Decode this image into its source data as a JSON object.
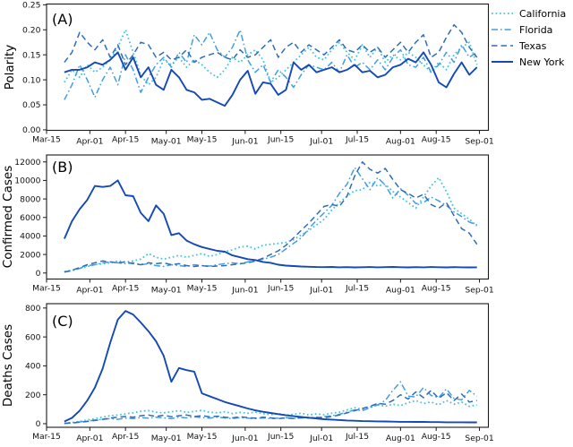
{
  "figure": {
    "background": "#ffffff"
  },
  "legend": {
    "position": "top-right-outside",
    "frame": "none"
  },
  "chart_data": {
    "type": "line",
    "title": "",
    "grid": false,
    "x_axis": {
      "unit": "date",
      "domain_days": [
        -7,
        166.5
      ],
      "sample_start_day": 0,
      "sample_step_days": 3,
      "sample_start_date": "Mar-22",
      "ticks": [
        {
          "label": "Mar-15",
          "day": -7
        },
        {
          "label": "Apr-01",
          "day": 10
        },
        {
          "label": "Apr-15",
          "day": 24
        },
        {
          "label": "May-01",
          "day": 40
        },
        {
          "label": "May-15",
          "day": 54
        },
        {
          "label": "Jun-01",
          "day": 71
        },
        {
          "label": "Jun-15",
          "day": 85
        },
        {
          "label": "Jul-01",
          "day": 101
        },
        {
          "label": "Jul-15",
          "day": 115
        },
        {
          "label": "Aug-01",
          "day": 132
        },
        {
          "label": "Aug-15",
          "day": 146
        },
        {
          "label": "Sep-01",
          "day": 163
        }
      ]
    },
    "panels": [
      {
        "id": "A",
        "panel_label": "(A)",
        "ylabel": "Polarity",
        "ylim": [
          -0.001,
          0.2515
        ],
        "series_key": "polarity",
        "yticks": [
          {
            "v": 0.0,
            "label": "0.00"
          },
          {
            "v": 0.05,
            "label": "0.05"
          },
          {
            "v": 0.1,
            "label": "0.10"
          },
          {
            "v": 0.15,
            "label": "0.15"
          },
          {
            "v": 0.2,
            "label": "0.20"
          },
          {
            "v": 0.25,
            "label": "0.25"
          }
        ]
      },
      {
        "id": "B",
        "panel_label": "(B)",
        "ylabel": "Confirmed Cases",
        "ylim": [
          -650,
          12750
        ],
        "series_key": "confirmed",
        "yticks": [
          {
            "v": 0,
            "label": "0"
          },
          {
            "v": 2000,
            "label": "2000"
          },
          {
            "v": 4000,
            "label": "4000"
          },
          {
            "v": 6000,
            "label": "6000"
          },
          {
            "v": 8000,
            "label": "8000"
          },
          {
            "v": 10000,
            "label": "10000"
          },
          {
            "v": 12000,
            "label": "12000"
          }
        ]
      },
      {
        "id": "C",
        "panel_label": "(C)",
        "ylabel": "Deaths Cases",
        "ylim": [
          -25,
          830
        ],
        "series_key": "deaths",
        "yticks": [
          {
            "v": 0,
            "label": "0"
          },
          {
            "v": 200,
            "label": "200"
          },
          {
            "v": 400,
            "label": "400"
          },
          {
            "v": 600,
            "label": "600"
          },
          {
            "v": 800,
            "label": "800"
          }
        ]
      }
    ],
    "series": [
      {
        "name": "California",
        "color": "#41c4e3",
        "dash": "dotted",
        "polarity": [
          0.095,
          0.12,
          0.105,
          0.13,
          0.115,
          0.125,
          0.14,
          0.165,
          0.2,
          0.155,
          0.11,
          0.09,
          0.105,
          0.14,
          0.13,
          0.145,
          0.125,
          0.14,
          0.13,
          0.115,
          0.105,
          0.12,
          0.145,
          0.135,
          0.15,
          0.16,
          0.14,
          0.095,
          0.105,
          0.12,
          0.135,
          0.15,
          0.165,
          0.145,
          0.14,
          0.16,
          0.175,
          0.155,
          0.14,
          0.17,
          0.145,
          0.165,
          0.135,
          0.15,
          0.14,
          0.155,
          0.145,
          0.13,
          0.115,
          0.135,
          0.12,
          0.15,
          0.165,
          0.175,
          0.13
        ],
        "confirmed": [
          150,
          300,
          500,
          700,
          900,
          1000,
          1100,
          1300,
          1200,
          1300,
          1500,
          2100,
          1700,
          1500,
          1700,
          1900,
          1700,
          1900,
          2100,
          1800,
          2000,
          2300,
          2500,
          2800,
          2900,
          2600,
          3000,
          3100,
          3200,
          3300,
          3600,
          4100,
          4600,
          5200,
          5800,
          6800,
          7600,
          8300,
          8900,
          9000,
          9800,
          9400,
          9600,
          8800,
          8200,
          7600,
          7000,
          8200,
          9400,
          10300,
          8800,
          7000,
          6400,
          5800,
          5100
        ],
        "deaths": [
          3,
          8,
          15,
          25,
          35,
          45,
          55,
          60,
          68,
          75,
          85,
          90,
          80,
          75,
          82,
          90,
          78,
          85,
          92,
          80,
          75,
          82,
          70,
          78,
          72,
          80,
          70,
          62,
          70,
          60,
          65,
          72,
          60,
          68,
          62,
          72,
          80,
          95,
          110,
          100,
          115,
          130,
          120,
          135,
          125,
          145,
          160,
          140,
          150,
          130,
          160,
          135,
          150,
          120,
          130
        ]
      },
      {
        "name": "Florida",
        "color": "#449de2",
        "dash": "dashdot",
        "polarity": [
          0.06,
          0.09,
          0.13,
          0.1,
          0.065,
          0.1,
          0.125,
          0.09,
          0.15,
          0.12,
          0.075,
          0.105,
          0.13,
          0.145,
          0.125,
          0.155,
          0.135,
          0.19,
          0.17,
          0.195,
          0.16,
          0.145,
          0.165,
          0.2,
          0.14,
          0.115,
          0.13,
          0.095,
          0.12,
          0.105,
          0.085,
          0.11,
          0.13,
          0.125,
          0.12,
          0.135,
          0.115,
          0.15,
          0.125,
          0.135,
          0.12,
          0.14,
          0.12,
          0.145,
          0.16,
          0.13,
          0.125,
          0.145,
          0.115,
          0.13,
          0.155,
          0.135,
          0.17,
          0.145,
          0.155
        ],
        "confirmed": [
          100,
          250,
          500,
          800,
          900,
          1100,
          1200,
          1100,
          1000,
          1100,
          900,
          1000,
          800,
          700,
          900,
          800,
          700,
          900,
          800,
          750,
          900,
          1000,
          1100,
          1000,
          1200,
          1300,
          1500,
          1700,
          2000,
          2600,
          3200,
          3800,
          4800,
          5700,
          6500,
          7300,
          8600,
          9600,
          11400,
          10200,
          9000,
          10300,
          9500,
          8100,
          9100,
          8400,
          7500,
          7600,
          8200,
          7800,
          7300,
          6600,
          6100,
          5500,
          5200
        ],
        "deaths": [
          2,
          6,
          12,
          18,
          25,
          30,
          35,
          30,
          38,
          35,
          42,
          38,
          45,
          40,
          35,
          45,
          40,
          48,
          42,
          38,
          45,
          40,
          35,
          42,
          38,
          35,
          40,
          35,
          38,
          42,
          36,
          40,
          45,
          40,
          48,
          55,
          65,
          80,
          95,
          90,
          110,
          130,
          160,
          230,
          290,
          190,
          185,
          250,
          195,
          180,
          240,
          175,
          165,
          230,
          190
        ]
      },
      {
        "name": "Texas",
        "color": "#2f6db8",
        "dash": "dashed",
        "polarity": [
          0.135,
          0.155,
          0.195,
          0.175,
          0.16,
          0.18,
          0.145,
          0.17,
          0.13,
          0.15,
          0.175,
          0.17,
          0.145,
          0.155,
          0.14,
          0.145,
          0.16,
          0.135,
          0.145,
          0.15,
          0.155,
          0.145,
          0.14,
          0.16,
          0.145,
          0.15,
          0.165,
          0.18,
          0.145,
          0.165,
          0.175,
          0.155,
          0.17,
          0.16,
          0.15,
          0.165,
          0.18,
          0.16,
          0.155,
          0.17,
          0.155,
          0.165,
          0.145,
          0.16,
          0.175,
          0.155,
          0.175,
          0.19,
          0.145,
          0.155,
          0.185,
          0.21,
          0.195,
          0.165,
          0.145
        ],
        "confirmed": [
          100,
          300,
          600,
          900,
          1100,
          1300,
          1200,
          1100,
          1200,
          1000,
          900,
          1100,
          1000,
          1100,
          900,
          1000,
          800,
          700,
          800,
          700,
          750,
          800,
          900,
          1000,
          1100,
          1300,
          1600,
          2000,
          2400,
          3000,
          3800,
          4600,
          5400,
          6300,
          7200,
          7400,
          7200,
          8300,
          10500,
          12000,
          11200,
          10800,
          11300,
          10100,
          9000,
          8600,
          8100,
          8500,
          7400,
          7000,
          7600,
          6200,
          4800,
          4300,
          3100
        ],
        "deaths": [
          2,
          5,
          10,
          15,
          22,
          30,
          38,
          45,
          50,
          45,
          55,
          60,
          50,
          58,
          48,
          55,
          60,
          50,
          55,
          48,
          52,
          45,
          40,
          48,
          42,
          38,
          45,
          40,
          35,
          40,
          36,
          42,
          38,
          45,
          40,
          50,
          60,
          75,
          90,
          105,
          120,
          140,
          135,
          160,
          200,
          170,
          220,
          180,
          230,
          175,
          215,
          160,
          205,
          150,
          160
        ]
      },
      {
        "name": "New York",
        "color": "#1549b5",
        "dash": "solid",
        "polarity": [
          0.115,
          0.12,
          0.12,
          0.125,
          0.135,
          0.13,
          0.14,
          0.155,
          0.12,
          0.145,
          0.105,
          0.125,
          0.09,
          0.08,
          0.12,
          0.105,
          0.08,
          0.075,
          0.06,
          0.062,
          0.055,
          0.048,
          0.07,
          0.1,
          0.118,
          0.072,
          0.095,
          0.092,
          0.07,
          0.08,
          0.135,
          0.12,
          0.13,
          0.115,
          0.12,
          0.125,
          0.115,
          0.12,
          0.13,
          0.115,
          0.118,
          0.105,
          0.11,
          0.125,
          0.13,
          0.142,
          0.135,
          0.155,
          0.13,
          0.095,
          0.085,
          0.112,
          0.135,
          0.11,
          0.125
        ],
        "confirmed": [
          3700,
          5600,
          6900,
          7900,
          9400,
          9300,
          9400,
          10000,
          8400,
          8300,
          6500,
          5600,
          7300,
          6400,
          4100,
          4300,
          3500,
          3100,
          2800,
          2600,
          2400,
          2300,
          1900,
          1700,
          1500,
          1400,
          1200,
          1100,
          900,
          800,
          750,
          700,
          680,
          650,
          640,
          660,
          620,
          640,
          610,
          630,
          650,
          620,
          640,
          660,
          630,
          610,
          640,
          620,
          650,
          630,
          610,
          640,
          620,
          610,
          620
        ],
        "deaths": [
          15,
          40,
          90,
          160,
          250,
          380,
          560,
          720,
          780,
          755,
          700,
          640,
          570,
          470,
          290,
          385,
          370,
          360,
          210,
          190,
          170,
          150,
          135,
          120,
          105,
          92,
          82,
          74,
          66,
          58,
          52,
          46,
          41,
          36,
          31,
          28,
          25,
          22,
          20,
          18,
          17,
          16,
          15,
          14,
          13,
          13,
          12,
          12,
          11,
          11,
          10,
          10,
          10,
          9,
          9
        ]
      }
    ]
  }
}
